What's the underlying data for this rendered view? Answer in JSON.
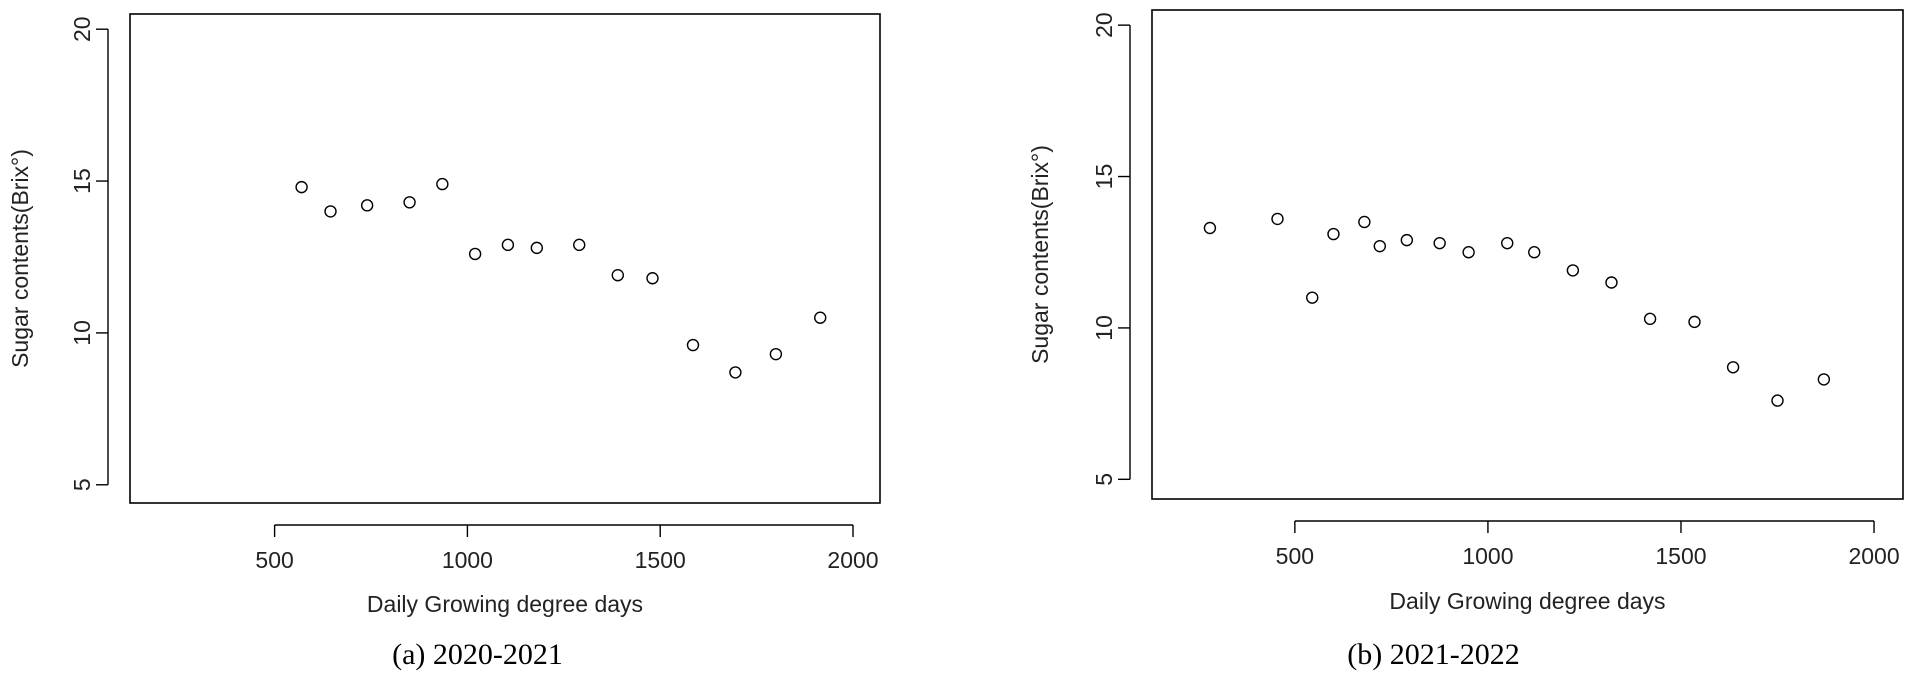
{
  "chart_data": [
    {
      "type": "scatter",
      "caption": "(a)  2020-2021",
      "xlabel": "Daily Growing degree days",
      "ylabel": "Sugar contents(Brix°)",
      "xlim": [
        125,
        2070
      ],
      "ylim": [
        4.4,
        20.5
      ],
      "xticks": [
        500,
        1000,
        1500,
        2000
      ],
      "yticks": [
        5,
        10,
        15,
        20
      ],
      "grid": false,
      "x": [
        570,
        645,
        740,
        850,
        935,
        1020,
        1105,
        1180,
        1290,
        1390,
        1480,
        1585,
        1695,
        1800,
        1915
      ],
      "y": [
        14.8,
        14.0,
        14.2,
        14.3,
        14.9,
        12.6,
        12.9,
        12.8,
        12.9,
        11.9,
        11.8,
        9.6,
        8.7,
        9.3,
        10.5
      ]
    },
    {
      "type": "scatter",
      "caption": "(b)  2021-2022",
      "xlabel": "Daily Growing degree days",
      "ylabel": "Sugar contents(Brix°)",
      "xlim": [
        130,
        2075
      ],
      "ylim": [
        4.35,
        20.5
      ],
      "xticks": [
        500,
        1000,
        1500,
        2000
      ],
      "yticks": [
        5,
        10,
        15,
        20
      ],
      "grid": false,
      "x": [
        280,
        455,
        545,
        600,
        680,
        720,
        790,
        875,
        950,
        1050,
        1120,
        1220,
        1320,
        1420,
        1535,
        1635,
        1750,
        1870
      ],
      "y": [
        13.3,
        13.6,
        11.0,
        13.1,
        13.5,
        12.7,
        12.9,
        12.8,
        12.5,
        12.8,
        12.5,
        11.9,
        11.5,
        10.3,
        10.2,
        8.7,
        7.6,
        8.3
      ]
    }
  ]
}
